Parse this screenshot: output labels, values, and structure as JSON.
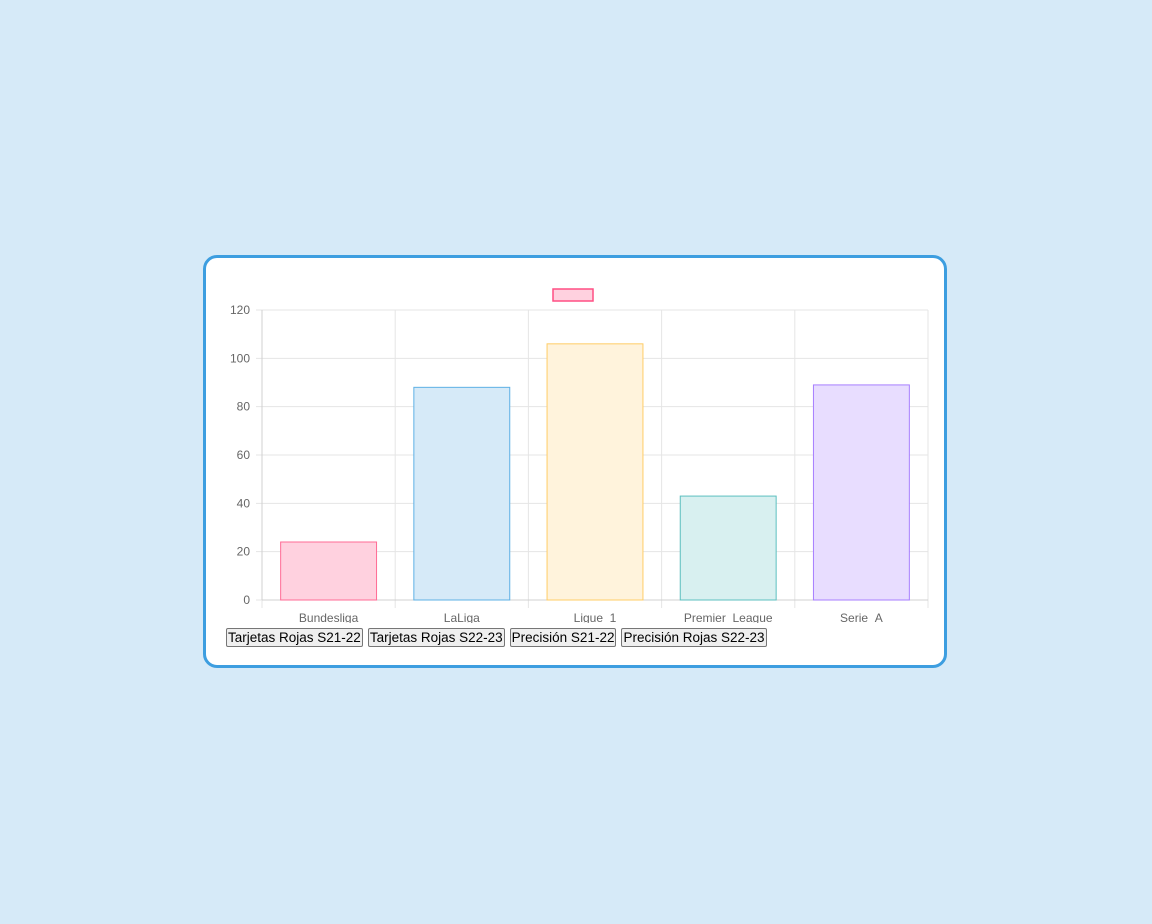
{
  "chart_data": {
    "type": "bar",
    "categories": [
      "Bundesliga",
      "LaLiga",
      "Ligue_1",
      "Premier_League",
      "Serie_A"
    ],
    "values": [
      24,
      88,
      106,
      43,
      89
    ],
    "ylim": [
      0,
      120
    ],
    "yticks": [
      0,
      20,
      40,
      60,
      80,
      100,
      120
    ],
    "grid": true,
    "legend": "top-center",
    "fill_colors": [
      "#ffd1df",
      "#d6eaf8",
      "#fff3dc",
      "#d8f0f0",
      "#e8ddff"
    ],
    "border_colors": [
      "#ff6b95",
      "#5eb0e5",
      "#ffcc66",
      "#5cbfbf",
      "#a77eff"
    ],
    "legend_swatch": {
      "fill": "#ffd1df",
      "border": "#ff4f84"
    }
  },
  "buttons": {
    "b1": "Tarjetas Rojas S21-22",
    "b2": "Tarjetas Rojas S22-23",
    "b3": "Precisión S21-22",
    "b4": "Precisión Rojas S22-23"
  },
  "colors": {
    "background": "#d6eaf8",
    "card_border": "#3d9ee0",
    "grid": "#e5e5e5",
    "tick_text": "#666666"
  }
}
